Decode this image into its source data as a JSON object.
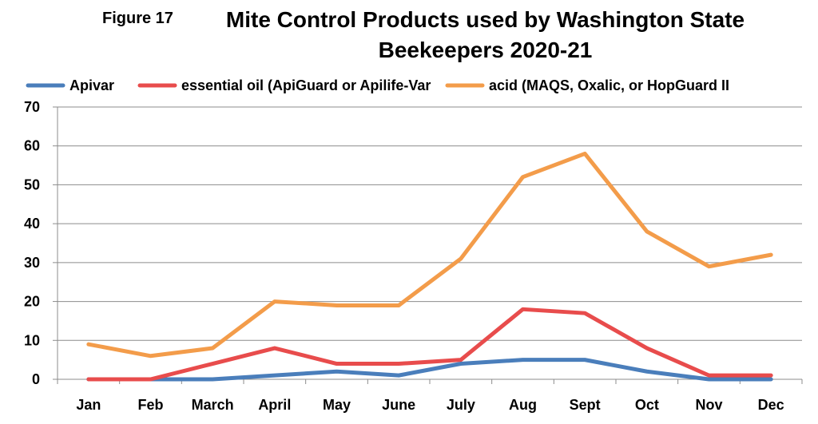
{
  "figure_label": "Figure 17",
  "chart_data": {
    "type": "line",
    "title_lines": [
      "Mite Control Products used by Washington State",
      "Beekeepers 2020-21"
    ],
    "categories": [
      "Jan",
      "Feb",
      "March",
      "April",
      "May",
      "June",
      "July",
      "Aug",
      "Sept",
      "Oct",
      "Nov",
      "Dec"
    ],
    "series": [
      {
        "name": "Apivar",
        "color": "#4a7ebb",
        "values": [
          0,
          0,
          0,
          1,
          2,
          1,
          4,
          5,
          5,
          2,
          0,
          0
        ]
      },
      {
        "name": "essential oil (ApiGuard or Apilife-Var",
        "color": "#e84c4c",
        "values": [
          0,
          0,
          4,
          8,
          4,
          4,
          5,
          18,
          17,
          8,
          1,
          1
        ]
      },
      {
        "name": "acid (MAQS, Oxalic, or HopGuard II",
        "color": "#f39c4a",
        "values": [
          9,
          6,
          8,
          20,
          19,
          19,
          31,
          52,
          58,
          38,
          29,
          32
        ]
      }
    ],
    "ylim": [
      0,
      70
    ],
    "yticks": [
      0,
      10,
      20,
      30,
      40,
      50,
      60,
      70
    ],
    "grid": true,
    "legend_position": "top"
  }
}
